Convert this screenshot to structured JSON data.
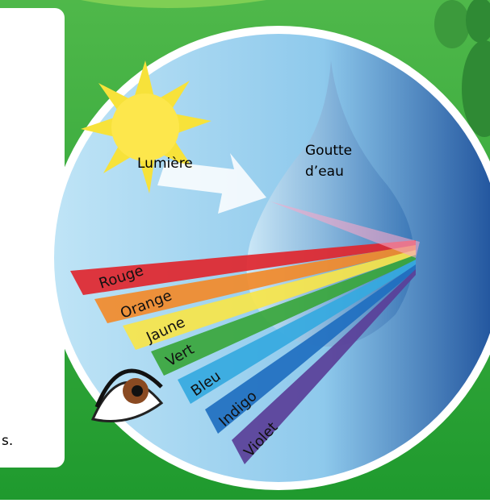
{
  "light_label": "Lumière",
  "drop_label": [
    "Goutte",
    "d’eau"
  ],
  "bands": [
    {
      "name": "Rouge",
      "color": "#e0262e"
    },
    {
      "name": "Orange",
      "color": "#f28a2a"
    },
    {
      "name": "Jaune",
      "color": "#f7e54a"
    },
    {
      "name": "Vert",
      "color": "#3aa63c"
    },
    {
      "name": "Bleu",
      "color": "#35a9e0"
    },
    {
      "name": "Indigo",
      "color": "#1f6fc0"
    },
    {
      "name": "Violet",
      "color": "#5a3f98"
    }
  ],
  "panel_fragment": "s."
}
